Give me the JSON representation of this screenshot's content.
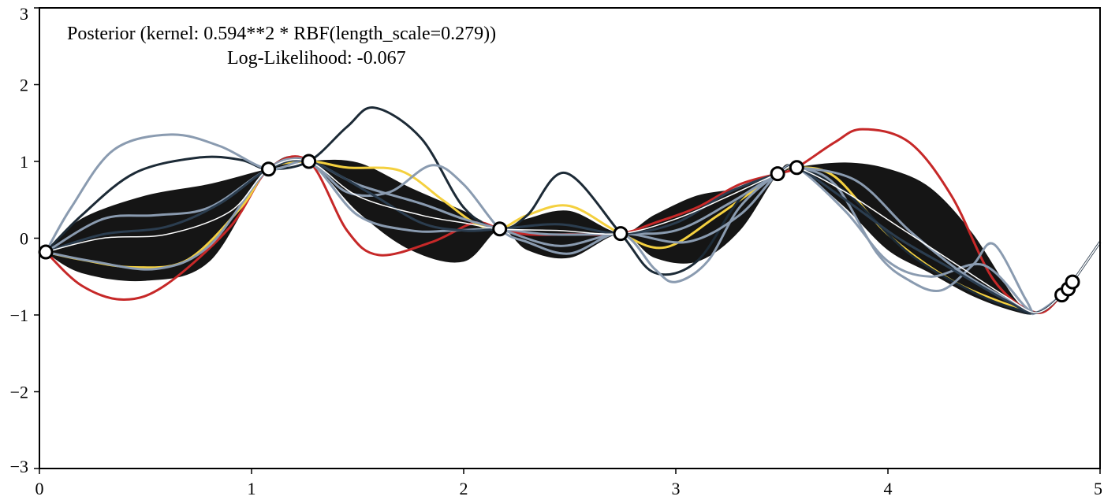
{
  "chart_data": {
    "type": "line",
    "title": "Posterior (kernel: 0.594**2 * RBF(length_scale=0.279))",
    "subtitle": "Log-Likelihood: -0.067",
    "xlabel": "",
    "ylabel": "",
    "xlim": [
      0,
      5
    ],
    "ylim": [
      -3,
      3
    ],
    "grid": false,
    "x_ticks": [
      "0",
      "1",
      "2",
      "3",
      "4",
      "5"
    ],
    "y_ticks": [
      "−3",
      "−2",
      "−1",
      "0",
      "1",
      "2",
      "3"
    ],
    "training_points": {
      "x": [
        0.03,
        1.08,
        1.27,
        2.17,
        2.74,
        3.48,
        3.57,
        4.82,
        4.85,
        4.87
      ],
      "y": [
        -0.18,
        0.9,
        1.0,
        0.12,
        0.06,
        0.84,
        0.92,
        -0.74,
        -0.66,
        -0.57
      ]
    },
    "band": {
      "x": [
        0.03,
        0.2,
        0.5,
        0.8,
        1.08,
        1.27,
        1.5,
        1.75,
        2.0,
        2.17,
        2.3,
        2.5,
        2.74,
        2.9,
        3.1,
        3.3,
        3.48,
        3.57,
        3.8,
        4.0,
        4.2,
        4.4,
        4.6,
        4.7,
        4.82,
        4.87,
        5.0
      ],
      "lower": [
        -0.18,
        -0.45,
        -0.55,
        -0.3,
        0.9,
        1.0,
        0.35,
        -0.15,
        -0.3,
        0.12,
        -0.15,
        -0.25,
        0.06,
        -0.25,
        -0.3,
        0.1,
        0.84,
        0.92,
        0.4,
        -0.15,
        -0.45,
        -0.75,
        -0.95,
        -0.97,
        -0.74,
        -0.57,
        -0.05
      ],
      "upper": [
        -0.18,
        0.25,
        0.55,
        0.7,
        0.9,
        1.0,
        0.98,
        0.65,
        0.35,
        0.12,
        0.25,
        0.35,
        0.06,
        0.3,
        0.55,
        0.65,
        0.84,
        0.92,
        0.98,
        0.9,
        0.65,
        0.05,
        -0.8,
        -0.97,
        -0.74,
        -0.57,
        -0.05
      ]
    },
    "series": [
      {
        "color": "#c62828",
        "x": [
          0.03,
          0.2,
          0.4,
          0.6,
          0.9,
          1.08,
          1.27,
          1.45,
          1.6,
          1.85,
          2.05,
          2.17,
          2.3,
          2.5,
          2.74,
          2.9,
          3.1,
          3.3,
          3.48,
          3.57,
          3.75,
          3.88,
          4.1,
          4.3,
          4.5,
          4.7,
          4.82,
          4.87,
          5.0
        ],
        "y": [
          -0.18,
          -0.62,
          -0.8,
          -0.6,
          0.15,
          0.9,
          1.0,
          0.1,
          -0.22,
          -0.05,
          0.2,
          0.12,
          0.05,
          0.05,
          0.06,
          0.2,
          0.4,
          0.7,
          0.84,
          0.92,
          1.25,
          1.42,
          1.25,
          0.55,
          -0.55,
          -0.97,
          -0.74,
          -0.57,
          -0.05
        ]
      },
      {
        "color": "#f4d03f",
        "x": [
          0.03,
          0.2,
          0.45,
          0.7,
          0.95,
          1.08,
          1.27,
          1.45,
          1.7,
          1.9,
          2.05,
          2.17,
          2.3,
          2.5,
          2.74,
          2.95,
          3.2,
          3.48,
          3.57,
          3.75,
          4.0,
          4.3,
          4.6,
          4.7,
          4.82,
          4.87,
          5.0
        ],
        "y": [
          -0.18,
          -0.28,
          -0.38,
          -0.28,
          0.4,
          0.9,
          1.0,
          0.92,
          0.88,
          0.5,
          0.2,
          0.12,
          0.3,
          0.42,
          0.06,
          -0.12,
          0.3,
          0.84,
          0.92,
          0.8,
          0.05,
          -0.55,
          -0.9,
          -0.97,
          -0.74,
          -0.57,
          -0.05
        ]
      },
      {
        "color": "#1c2a36",
        "x": [
          0.03,
          0.2,
          0.45,
          0.75,
          0.95,
          1.08,
          1.27,
          1.45,
          1.58,
          1.8,
          2.0,
          2.17,
          2.3,
          2.48,
          2.74,
          2.9,
          3.1,
          3.3,
          3.48,
          3.57,
          3.8,
          4.1,
          4.4,
          4.6,
          4.7,
          4.82,
          4.87,
          5.0
        ],
        "y": [
          -0.18,
          0.3,
          0.85,
          1.05,
          1.02,
          0.9,
          1.0,
          1.45,
          1.7,
          1.3,
          0.4,
          0.12,
          0.3,
          0.85,
          0.06,
          -0.45,
          -0.3,
          0.5,
          0.84,
          0.92,
          0.6,
          -0.2,
          -0.7,
          -0.92,
          -0.97,
          -0.74,
          -0.57,
          -0.05
        ]
      },
      {
        "color": "#8a9bb0",
        "x": [
          0.03,
          0.15,
          0.35,
          0.62,
          0.85,
          1.08,
          1.27,
          1.45,
          1.65,
          1.85,
          2.0,
          2.17,
          2.3,
          2.5,
          2.74,
          2.9,
          3.0,
          3.15,
          3.3,
          3.48,
          3.57,
          3.75,
          3.95,
          4.1,
          4.25,
          4.4,
          4.5,
          4.65,
          4.7,
          4.82,
          4.87,
          5.0
        ],
        "y": [
          -0.18,
          0.4,
          1.15,
          1.35,
          1.2,
          0.9,
          1.0,
          0.6,
          0.6,
          0.95,
          0.7,
          0.12,
          -0.05,
          -0.2,
          0.06,
          -0.4,
          -0.57,
          -0.3,
          0.4,
          0.84,
          0.92,
          0.7,
          -0.2,
          -0.55,
          -0.68,
          -0.35,
          -0.08,
          -0.8,
          -0.97,
          -0.74,
          -0.57,
          -0.05
        ]
      },
      {
        "color": "#8a9bb0",
        "x": [
          0.03,
          0.3,
          0.55,
          0.8,
          1.08,
          1.27,
          1.5,
          1.75,
          1.95,
          2.17,
          2.4,
          2.74,
          3.0,
          3.25,
          3.48,
          3.57,
          3.8,
          4.0,
          4.2,
          4.45,
          4.65,
          4.7,
          4.82,
          4.87,
          5.0
        ],
        "y": [
          -0.18,
          0.25,
          0.3,
          0.4,
          0.9,
          1.0,
          0.3,
          0.1,
          0.1,
          0.12,
          0.05,
          0.06,
          0.1,
          0.45,
          0.84,
          0.92,
          0.35,
          -0.3,
          -0.5,
          -0.35,
          -0.9,
          -0.97,
          -0.74,
          -0.57,
          -0.05
        ]
      },
      {
        "color": "#8a9bb0",
        "x": [
          0.03,
          0.25,
          0.55,
          0.8,
          1.08,
          1.27,
          1.5,
          1.8,
          2.0,
          2.17,
          2.45,
          2.74,
          3.05,
          3.3,
          3.48,
          3.57,
          3.85,
          4.1,
          4.35,
          4.6,
          4.7,
          4.82,
          4.87,
          5.0
        ],
        "y": [
          -0.18,
          -0.3,
          -0.4,
          -0.1,
          0.9,
          1.0,
          0.7,
          0.45,
          0.25,
          0.12,
          -0.1,
          0.06,
          -0.05,
          0.3,
          0.84,
          0.92,
          0.75,
          0.1,
          -0.45,
          -0.85,
          -0.97,
          -0.74,
          -0.57,
          -0.05
        ]
      },
      {
        "color": "#2b3d4f",
        "x": [
          0.03,
          0.3,
          0.6,
          0.85,
          1.08,
          1.27,
          1.55,
          1.8,
          2.0,
          2.17,
          2.45,
          2.74,
          3.0,
          3.25,
          3.48,
          3.57,
          3.8,
          4.05,
          4.3,
          4.55,
          4.7,
          4.82,
          4.87,
          5.0
        ],
        "y": [
          -0.18,
          0.05,
          0.15,
          0.45,
          0.9,
          1.0,
          0.6,
          0.2,
          0.1,
          0.12,
          0.18,
          0.06,
          0.2,
          0.6,
          0.84,
          0.92,
          0.5,
          0.0,
          -0.4,
          -0.8,
          -0.97,
          -0.74,
          -0.57,
          -0.05
        ]
      },
      {
        "color": "#ffffff",
        "x": [
          0.03,
          0.3,
          0.6,
          0.9,
          1.08,
          1.27,
          1.5,
          1.8,
          2.0,
          2.17,
          2.45,
          2.74,
          3.0,
          3.25,
          3.48,
          3.57,
          3.8,
          4.05,
          4.3,
          4.55,
          4.7,
          4.82,
          4.87,
          5.0
        ],
        "y": [
          -0.18,
          0.0,
          0.05,
          0.35,
          0.9,
          1.0,
          0.55,
          0.3,
          0.2,
          0.12,
          0.1,
          0.06,
          0.25,
          0.55,
          0.84,
          0.92,
          0.6,
          0.15,
          -0.3,
          -0.75,
          -0.97,
          -0.74,
          -0.57,
          -0.05
        ]
      }
    ]
  }
}
